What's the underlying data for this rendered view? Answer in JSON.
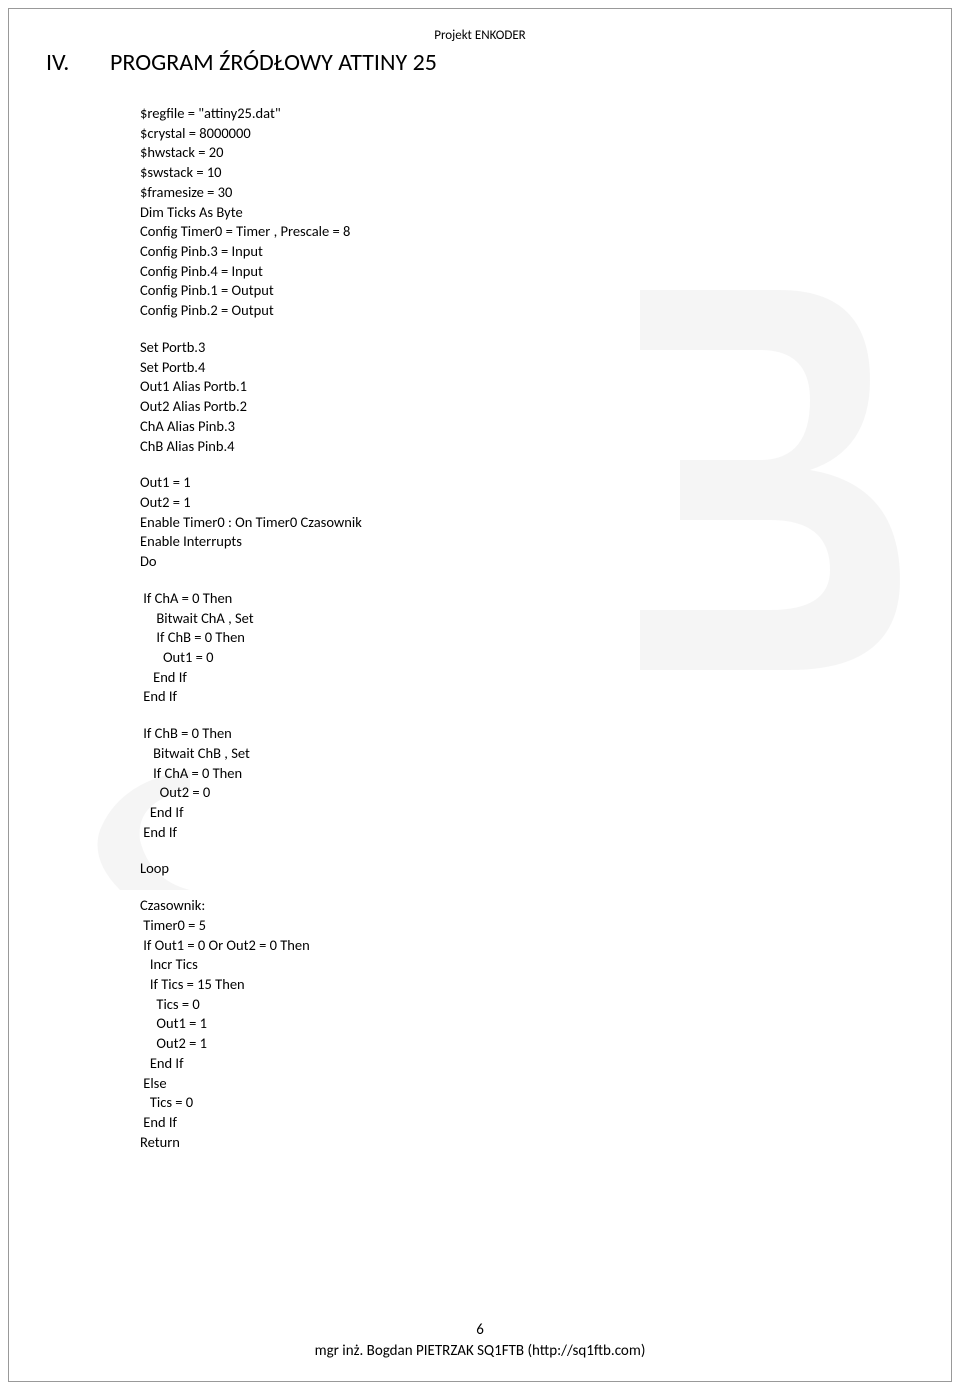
{
  "header": "Projekt ENKODER",
  "section": {
    "number": "IV.",
    "title": "PROGRAM ŹRÓDŁOWY ATTINY 25"
  },
  "code": {
    "groups": [
      [
        "$regfile = \"attiny25.dat\"",
        "$crystal = 8000000",
        "$hwstack = 20",
        "$swstack = 10",
        "$framesize = 30",
        "Dim Ticks As Byte",
        "Config Timer0 = Timer , Prescale = 8",
        "Config Pinb.3 = Input",
        "Config Pinb.4 = Input",
        "Config Pinb.1 = Output",
        "Config Pinb.2 = Output"
      ],
      [
        "Set Portb.3",
        "Set Portb.4",
        "Out1 Alias Portb.1",
        "Out2 Alias Portb.2",
        "ChA Alias Pinb.3",
        "ChB Alias Pinb.4"
      ],
      [
        "Out1 = 1",
        "Out2 = 1",
        "Enable Timer0 : On Timer0 Czasownik",
        "Enable Interrupts",
        "Do"
      ],
      [
        " If ChA = 0 Then",
        "     Bitwait ChA , Set",
        "     If ChB = 0 Then",
        "       Out1 = 0",
        "    End If",
        " End If"
      ],
      [
        " If ChB = 0 Then",
        "    Bitwait ChB , Set",
        "    If ChA = 0 Then",
        "      Out2 = 0",
        "   End If",
        " End If"
      ],
      [
        "Loop"
      ],
      [
        "Czasownik:",
        " Timer0 = 5",
        " If Out1 = 0 Or Out2 = 0 Then",
        "   Incr Tics",
        "   If Tics = 15 Then",
        "     Tics = 0",
        "     Out1 = 1",
        "     Out2 = 1",
        "   End If",
        " Else",
        "   Tics = 0",
        " End If",
        "Return"
      ]
    ]
  },
  "footer": {
    "page_number": "6",
    "author_line": "mgr inż. Bogdan PIETRZAK SQ1FTB (http://sq1ftb.com)"
  },
  "style": {
    "font_family": "Calibri, Segoe UI, Arial, sans-serif",
    "text_color": "#000000",
    "background_color": "#ffffff",
    "watermark_color": "#b5b5b5",
    "border_color": "#999999",
    "header_fontsize": 13,
    "section_fontsize": 24,
    "code_fontsize": 14.5,
    "footer_fontsize": 15
  }
}
